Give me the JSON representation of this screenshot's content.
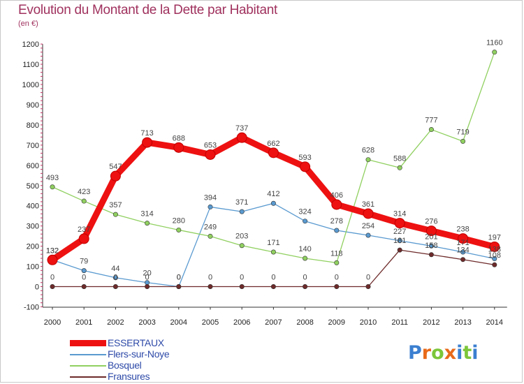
{
  "header": {
    "title": "Evolution du Montant de la Dette par Habitant",
    "subtitle": "(en €)"
  },
  "chart_data": {
    "type": "line",
    "title": "Evolution du Montant de la Dette par Habitant",
    "subtitle": "(en €)",
    "xlabel": "",
    "ylabel": "",
    "x": [
      "2000",
      "2001",
      "2002",
      "2003",
      "2004",
      "2005",
      "2006",
      "2007",
      "2008",
      "2009",
      "2010",
      "2011",
      "2012",
      "2013",
      "2014"
    ],
    "ylim": [
      -100,
      1200
    ],
    "yticks": [
      -100,
      0,
      100,
      200,
      300,
      400,
      500,
      600,
      700,
      800,
      900,
      1000,
      1100,
      1200
    ],
    "grid": false,
    "legend_position": "bottom-left",
    "series": [
      {
        "name": "ESSERTAUX",
        "color": "#ee1111",
        "values": [
          132,
          237,
          547,
          713,
          688,
          653,
          737,
          662,
          593,
          406,
          361,
          314,
          276,
          238,
          197
        ],
        "labels": [
          "132",
          "237",
          "547",
          "713",
          "688",
          "653",
          "737",
          "662",
          "593",
          "406",
          "361",
          "314",
          "276",
          "238",
          "197"
        ]
      },
      {
        "name": "Flers-sur-Noye",
        "color": "#5a9ad0",
        "values": [
          132,
          79,
          44,
          20,
          0,
          394,
          371,
          412,
          324,
          278,
          254,
          227,
          201,
          171,
          138
        ],
        "labels": [
          "132",
          "79",
          "44",
          "20",
          "0",
          "394",
          "371",
          "412",
          "324",
          "278",
          "254",
          "227",
          "201",
          "171",
          "138"
        ]
      },
      {
        "name": "Bosquel",
        "color": "#90d060",
        "values": [
          493,
          423,
          357,
          314,
          280,
          249,
          203,
          171,
          140,
          118,
          628,
          588,
          777,
          719,
          1160
        ],
        "labels": [
          "493",
          "423",
          "357",
          "314",
          "280",
          "249",
          "203",
          "171",
          "140",
          "118",
          "628",
          "588",
          "777",
          "719",
          "1160"
        ]
      },
      {
        "name": "Fransures",
        "color": "#6e2a2a",
        "values": [
          0,
          0,
          0,
          0,
          0,
          0,
          0,
          0,
          0,
          0,
          0,
          181,
          158,
          134,
          108
        ],
        "labels": [
          "0",
          "0",
          "0",
          "0",
          "0",
          "0",
          "0",
          "0",
          "0",
          "0",
          "0",
          "181",
          "158",
          "134",
          "108"
        ]
      }
    ]
  },
  "legend": {
    "items": [
      {
        "label": "ESSERTAUX"
      },
      {
        "label": "Flers-sur-Noye"
      },
      {
        "label": "Bosquel"
      },
      {
        "label": "Fransures"
      }
    ]
  },
  "brand": {
    "letters": [
      "P",
      "r",
      "o",
      "x",
      "i",
      "t",
      "i"
    ],
    "colors": [
      "#3b7fd0",
      "#e86a1a",
      "#7cc63a",
      "#e86a1a",
      "#3b7fd0",
      "#7cc63a",
      "#3b7fd0"
    ]
  }
}
